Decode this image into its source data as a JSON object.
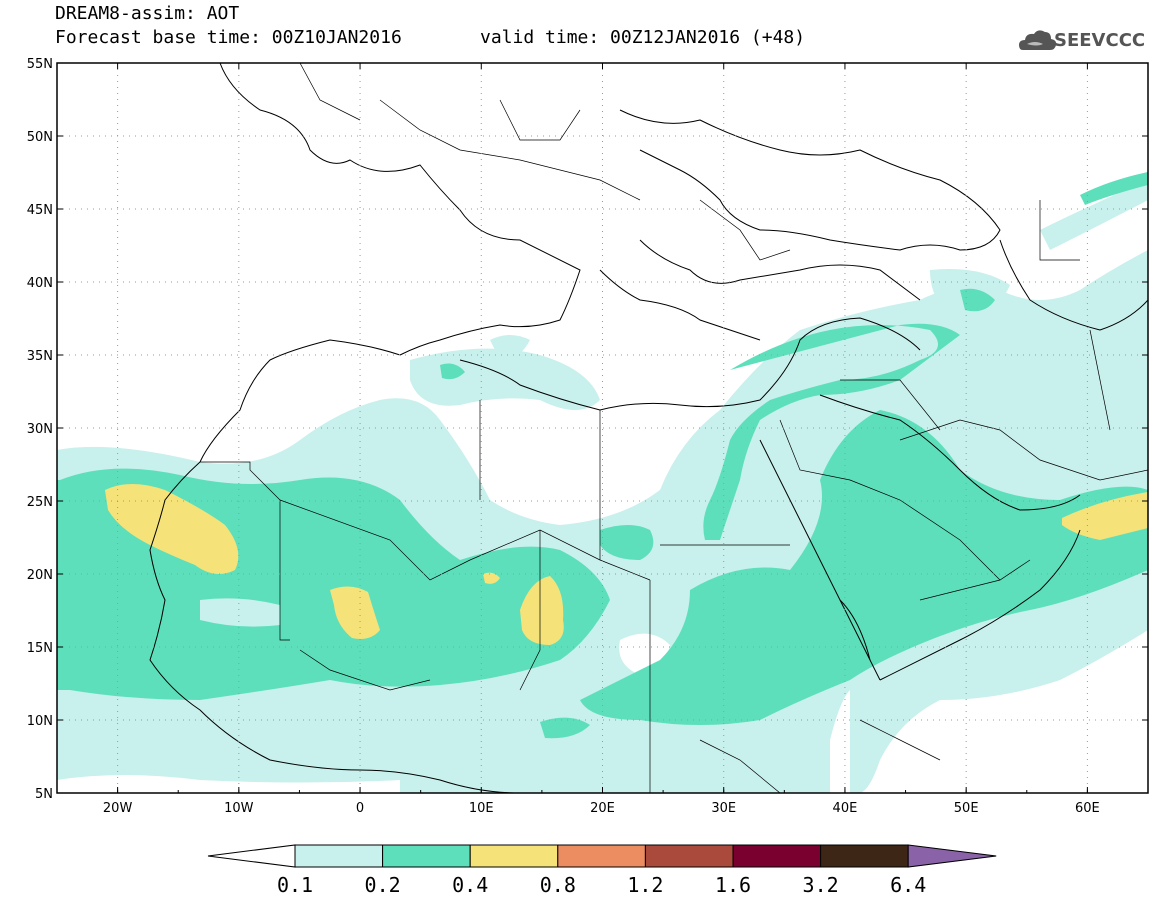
{
  "header": {
    "title": "DREAM8-assim: AOT",
    "base_time": "Forecast base time: 00Z10JAN2016",
    "valid_time": "valid time: 00Z12JAN2016 (+48)"
  },
  "logo": {
    "text": "SEEVCCC",
    "icon": "cloud-icon"
  },
  "map": {
    "lon_range": [
      -25,
      65
    ],
    "lat_range": [
      5,
      55
    ],
    "lon_ticks": [
      "20W",
      "10W",
      "0",
      "10E",
      "20E",
      "30E",
      "40E",
      "50E",
      "60E"
    ],
    "lat_ticks": [
      "55N",
      "50N",
      "45N",
      "40N",
      "35N",
      "30N",
      "25N",
      "20N",
      "15N",
      "10N",
      "5N"
    ],
    "grid": true
  },
  "colorbar": {
    "labels": [
      "0.1",
      "0.2",
      "0.4",
      "0.8",
      "1.2",
      "1.6",
      "3.2",
      "6.4"
    ],
    "colors": [
      "#ffffff",
      "#c8f0ec",
      "#5ddfbb",
      "#f5e37a",
      "#eb8d60",
      "#aa4a3c",
      "#7a0030",
      "#3d2616",
      "#8a62a8"
    ]
  }
}
